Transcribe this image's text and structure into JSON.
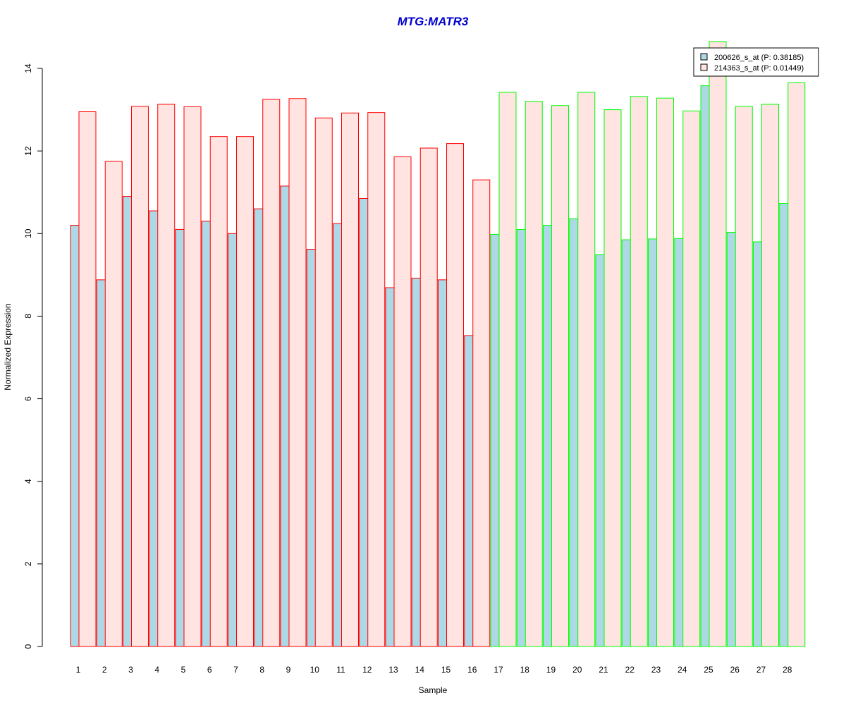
{
  "chart_data": {
    "type": "bar",
    "title": "MTG:MATR3",
    "xlabel": "Sample",
    "ylabel": "Normalized Expression",
    "ylim": [
      0,
      14
    ],
    "yticks": [
      "0",
      "2",
      "4",
      "6",
      "8",
      "10",
      "12",
      "14"
    ],
    "categories": [
      "1",
      "2",
      "3",
      "4",
      "5",
      "6",
      "7",
      "8",
      "9",
      "10",
      "11",
      "12",
      "13",
      "14",
      "15",
      "16",
      "17",
      "18",
      "19",
      "20",
      "21",
      "22",
      "23",
      "24",
      "25",
      "26",
      "27",
      "28"
    ],
    "group_border_colors": [
      "#ff0000",
      "#ff0000",
      "#ff0000",
      "#ff0000",
      "#ff0000",
      "#ff0000",
      "#ff0000",
      "#ff0000",
      "#ff0000",
      "#ff0000",
      "#ff0000",
      "#ff0000",
      "#ff0000",
      "#ff0000",
      "#ff0000",
      "#ff0000",
      "#00ff00",
      "#00ff00",
      "#00ff00",
      "#00ff00",
      "#00ff00",
      "#00ff00",
      "#00ff00",
      "#00ff00",
      "#00ff00",
      "#00ff00",
      "#00ff00",
      "#00ff00"
    ],
    "series": [
      {
        "name": "200626_s_at (P: 0.38185)",
        "fill": "#add8e6",
        "values": [
          10.2,
          8.88,
          10.9,
          10.55,
          10.1,
          10.3,
          10.0,
          10.6,
          11.15,
          9.62,
          10.24,
          10.85,
          8.69,
          8.92,
          8.88,
          7.53,
          9.98,
          10.1,
          10.2,
          10.36,
          9.49,
          9.85,
          9.87,
          9.88,
          13.58,
          10.03,
          9.8,
          10.73
        ]
      },
      {
        "name": "214363_s_at (P: 0.01449)",
        "fill": "#ffe4e1",
        "values": [
          12.95,
          11.75,
          13.08,
          13.13,
          13.07,
          12.35,
          12.35,
          13.25,
          13.27,
          12.8,
          12.92,
          12.93,
          11.86,
          12.07,
          12.18,
          11.3,
          13.42,
          13.2,
          13.1,
          13.42,
          13.0,
          13.32,
          13.28,
          12.97,
          14.65,
          13.08,
          13.13,
          13.65
        ]
      }
    ],
    "legend_position": "top-right",
    "title_color": "#0000cd",
    "grid": false
  }
}
